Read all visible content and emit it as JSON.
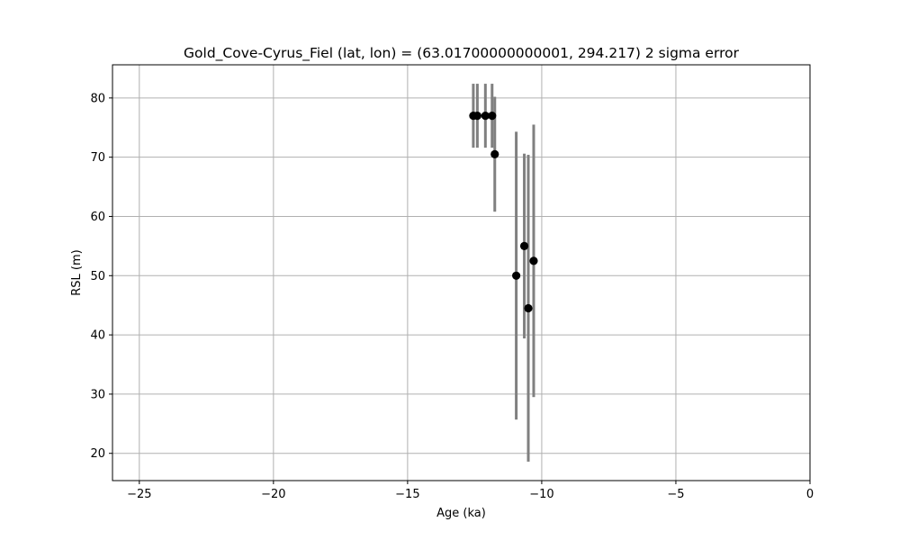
{
  "chart_data": {
    "type": "scatter",
    "title": "Gold_Cove-Cyrus_Fiel (lat, lon) = (63.01700000000001, 294.217)  2 sigma error",
    "xlabel": "Age (ka)",
    "ylabel": "RSL (m)",
    "xlim": [
      -26,
      0
    ],
    "ylim": [
      15.4,
      85.6
    ],
    "xticks": [
      -25,
      -20,
      -15,
      -10,
      -5,
      0
    ],
    "xtick_labels": [
      "−25",
      "−20",
      "−15",
      "−10",
      "−5",
      "0"
    ],
    "yticks": [
      20,
      30,
      40,
      50,
      60,
      70,
      80
    ],
    "ytick_labels": [
      "20",
      "30",
      "40",
      "50",
      "60",
      "70",
      "80"
    ],
    "grid": true,
    "colors": {
      "marker": "#000000",
      "errorbar": "#808080",
      "grid": "#b0b0b0"
    },
    "series": [
      {
        "points": [
          {
            "x": -12.55,
            "y": 77.0,
            "ylow": 71.6,
            "yhigh": 82.4,
            "xerr": 0.04
          },
          {
            "x": -12.4,
            "y": 77.0,
            "ylow": 71.6,
            "yhigh": 82.4,
            "xerr": 0.04
          },
          {
            "x": -12.1,
            "y": 77.0,
            "ylow": 71.6,
            "yhigh": 82.4,
            "xerr": 0.04
          },
          {
            "x": -11.85,
            "y": 77.0,
            "ylow": 71.6,
            "yhigh": 82.4,
            "xerr": 0.04
          },
          {
            "x": -11.75,
            "y": 70.5,
            "ylow": 60.8,
            "yhigh": 80.2,
            "xerr": 0.04
          },
          {
            "x": -10.95,
            "y": 50.0,
            "ylow": 25.7,
            "yhigh": 74.3,
            "xerr": 0.04
          },
          {
            "x": -10.65,
            "y": 55.0,
            "ylow": 39.4,
            "yhigh": 70.6,
            "xerr": 0.04
          },
          {
            "x": -10.5,
            "y": 44.5,
            "ylow": 18.6,
            "yhigh": 70.4,
            "xerr": 0.04
          },
          {
            "x": -10.3,
            "y": 52.5,
            "ylow": 29.5,
            "yhigh": 75.5,
            "xerr": 0.04
          }
        ]
      }
    ]
  }
}
